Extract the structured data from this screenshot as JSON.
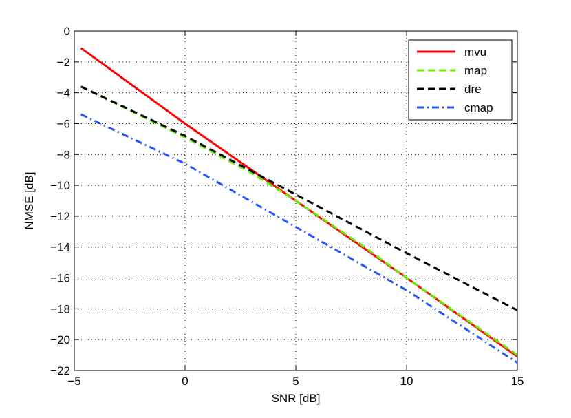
{
  "chart_data": {
    "type": "line",
    "title": "",
    "xlabel": "SNR [dB]",
    "ylabel": "NMSE [dB]",
    "xlim": [
      -5,
      15
    ],
    "ylim": [
      -22,
      0
    ],
    "xticks": [
      -5,
      0,
      5,
      10,
      15
    ],
    "yticks": [
      0,
      -2,
      -4,
      -6,
      -8,
      -10,
      -12,
      -14,
      -16,
      -18,
      -20,
      -22
    ],
    "xtick_labels": [
      "−5",
      "0",
      "5",
      "10",
      "15"
    ],
    "ytick_labels": [
      "0",
      "−2",
      "−4",
      "−6",
      "−8",
      "−10",
      "−12",
      "−14",
      "−16",
      "−18",
      "−20",
      "−22"
    ],
    "grid": true,
    "legend_position": "top-right",
    "series": [
      {
        "name": "mvu",
        "color": "#ff0000",
        "dash": "solid",
        "x": [
          -4.7,
          0,
          5,
          10,
          15
        ],
        "y": [
          -1.1,
          -6.0,
          -11.0,
          -16.0,
          -21.1
        ]
      },
      {
        "name": "map",
        "color": "#66ee00",
        "dash": "dashed",
        "x": [
          -4.7,
          0,
          3,
          5,
          8,
          10,
          12,
          15
        ],
        "y": [
          -3.6,
          -6.9,
          -9.2,
          -11.0,
          -13.9,
          -16.0,
          -18.0,
          -21.0
        ]
      },
      {
        "name": "dre",
        "color": "#000000",
        "dash": "dashed",
        "x": [
          -4.7,
          0,
          5,
          10,
          15
        ],
        "y": [
          -3.6,
          -6.8,
          -10.6,
          -14.4,
          -18.1
        ]
      },
      {
        "name": "cmap",
        "color": "#2255ff",
        "dash": "dashdot",
        "x": [
          -4.7,
          0,
          5,
          10,
          15
        ],
        "y": [
          -5.4,
          -8.6,
          -12.7,
          -16.8,
          -21.5
        ]
      }
    ]
  }
}
